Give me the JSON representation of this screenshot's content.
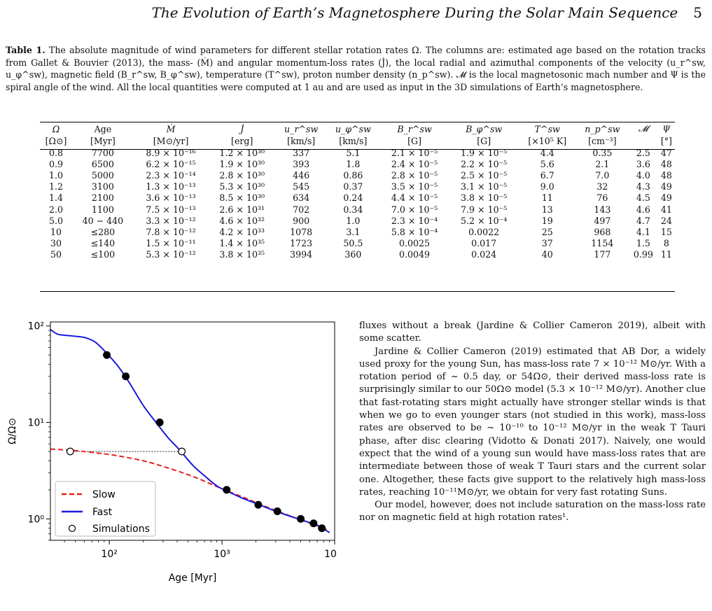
{
  "header": {
    "running_title": "The Evolution of Earth’s Magnetosphere During the Solar Main Sequence",
    "page_number": "5"
  },
  "caption": {
    "label": "Table 1.",
    "text": "The absolute magnitude of wind parameters for different stellar rotation rates Ω. The columns are: estimated age based on the rotation tracks from Gallet & Bouvier (2013), the mass- (Ṁ) and angular momentum-loss rates (J̇), the local radial and azimuthal components of the velocity (u_r^sw, u_φ^sw), magnetic field (B_r^sw, B_φ^sw), temperature (T^sw), proton number density (n_p^sw). 𝓜 is the local magnetosonic mach number and Ψ is the spiral angle of the wind. All the local quantities were computed at 1 au and are used as input in the 3D simulations of Earth’s magnetosphere."
  },
  "table": {
    "headers": [
      "Ω",
      "Age",
      "Ṁ",
      "J̇",
      "u_r^sw",
      "u_φ^sw",
      "B_r^sw",
      "B_φ^sw",
      "T^sw",
      "n_p^sw",
      "𝓜",
      "Ψ"
    ],
    "units": [
      "[Ω⊙]",
      "[Myr]",
      "[M⊙/yr]",
      "[erg]",
      "[km/s]",
      "[km/s]",
      "[G]",
      "[G]",
      "[×10⁵ K]",
      "[cm⁻³]",
      "",
      "[°]"
    ],
    "rows": [
      [
        "0.8",
        "7700",
        "8.9 × 10⁻¹⁶",
        "1.2 × 10³⁰",
        "337",
        "5.1",
        "2.1 × 10⁻⁵",
        "1.9 × 10⁻⁵",
        "4.4",
        "0.35",
        "2.5",
        "47"
      ],
      [
        "0.9",
        "6500",
        "6.2 × 10⁻¹⁵",
        "1.9 × 10³⁰",
        "393",
        "1.8",
        "2.4 × 10⁻⁵",
        "2.2 × 10⁻⁵",
        "5.6",
        "2.1",
        "3.6",
        "48"
      ],
      [
        "1.0",
        "5000",
        "2.3 × 10⁻¹⁴",
        "2.8 × 10³⁰",
        "446",
        "0.86",
        "2.8 × 10⁻⁵",
        "2.5 × 10⁻⁵",
        "6.7",
        "7.0",
        "4.0",
        "48"
      ],
      [
        "1.2",
        "3100",
        "1.3 × 10⁻¹³",
        "5.3 × 10³⁰",
        "545",
        "0.37",
        "3.5 × 10⁻⁵",
        "3.1 × 10⁻⁵",
        "9.0",
        "32",
        "4.3",
        "49"
      ],
      [
        "1.4",
        "2100",
        "3.6 × 10⁻¹³",
        "8.5 × 10³⁰",
        "634",
        "0.24",
        "4.4 × 10⁻⁵",
        "3.8 × 10⁻⁵",
        "11",
        "76",
        "4.5",
        "49"
      ],
      [
        "2.0",
        "1100",
        "7.5 × 10⁻¹³",
        "2.6 × 10³¹",
        "702",
        "0.34",
        "7.0 × 10⁻⁵",
        "7.9 × 10⁻⁵",
        "13",
        "143",
        "4.6",
        "41"
      ],
      [
        "5.0",
        "40 − 440",
        "3.3 × 10⁻¹²",
        "4.6 × 10³²",
        "900",
        "1.0",
        "2.3 × 10⁻⁴",
        "5.2 × 10⁻⁴",
        "19",
        "497",
        "4.7",
        "24"
      ],
      [
        "10",
        "≤280",
        "7.8 × 10⁻¹²",
        "4.2 × 10³³",
        "1078",
        "3.1",
        "5.8 × 10⁻⁴",
        "0.0022",
        "25",
        "968",
        "4.1",
        "15"
      ],
      [
        "30",
        "≤140",
        "1.5 × 10⁻¹¹",
        "1.4 × 10³⁵",
        "1723",
        "50.5",
        "0.0025",
        "0.017",
        "37",
        "1154",
        "1.5",
        "8"
      ],
      [
        "50",
        "≤100",
        "5.3 × 10⁻¹²",
        "3.8 × 10³⁵",
        "3994",
        "360",
        "0.0049",
        "0.024",
        "40",
        "177",
        "0.99",
        "11"
      ]
    ]
  },
  "chart_data": {
    "type": "line",
    "xlabel": "Age [Myr]",
    "ylabel": "Ω/Ω⊙",
    "xscale": "log",
    "yscale": "log",
    "xlim": [
      30,
      10000
    ],
    "ylim": [
      0.6,
      110
    ],
    "xticks": [
      "10²",
      "10³",
      "10"
    ],
    "yticks": [
      "10⁰",
      "10¹",
      "10²"
    ],
    "legend": {
      "placement": "lower-left",
      "entries": [
        "Slow",
        "Fast",
        "Simulations"
      ]
    },
    "series": [
      {
        "name": "Slow",
        "style": "dashed",
        "color": "#e8201e",
        "x": [
          30,
          50,
          80,
          120,
          200,
          300,
          450,
          600,
          800,
          1000,
          1500,
          2000,
          3000,
          5000,
          7000,
          9000
        ],
        "y": [
          5.3,
          5.1,
          4.8,
          4.5,
          4.0,
          3.5,
          3.0,
          2.65,
          2.3,
          2.05,
          1.7,
          1.48,
          1.22,
          0.98,
          0.85,
          0.75
        ]
      },
      {
        "name": "Fast",
        "style": "solid",
        "color": "#1b1bdc",
        "x": [
          30,
          35,
          45,
          60,
          75,
          95,
          120,
          150,
          200,
          260,
          330,
          420,
          550,
          700,
          900,
          1100,
          1500,
          2000,
          3000,
          5000,
          7000,
          9000
        ],
        "y": [
          92,
          82,
          79,
          76,
          68,
          52,
          38,
          26,
          15,
          10,
          7,
          5.2,
          3.6,
          2.8,
          2.2,
          1.95,
          1.65,
          1.45,
          1.2,
          0.98,
          0.86,
          0.72
        ]
      },
      {
        "name": "Simulations",
        "style": "markers",
        "filled": [
          [
            95,
            50
          ],
          [
            140,
            30
          ],
          [
            280,
            10
          ],
          [
            1100,
            2.0
          ],
          [
            2100,
            1.4
          ],
          [
            3100,
            1.2
          ],
          [
            5000,
            1.0
          ],
          [
            6500,
            0.9
          ],
          [
            7700,
            0.8
          ]
        ],
        "open": [
          [
            45,
            5.0
          ],
          [
            440,
            5.0
          ]
        ]
      }
    ],
    "annotation": {
      "type": "dotted-line",
      "from": [
        45,
        5.0
      ],
      "to": [
        440,
        5.0
      ]
    }
  },
  "body": {
    "paragraphs": [
      "fluxes without a break (Jardine & Collier Cameron 2019), albeit with some scatter.",
      "Jardine & Collier Cameron (2019) estimated that AB Dor, a widely used proxy for the young Sun, has mass-loss rate 7 × 10⁻¹² M⊙/yr. With a rotation period of ~ 0.5 day, or 54Ω⊙, their derived mass-loss rate is surprisingly similar to our 50Ω⊙ model (5.3 × 10⁻¹² M⊙/yr). Another clue that fast-rotating stars might actually have stronger stellar winds is that when we go to even younger stars (not studied in this work), mass-loss rates are observed to be ~ 10⁻¹⁰ to 10⁻¹² M⊙/yr in the weak T Tauri phase, after disc clearing (Vidotto & Donati 2017). Naively, one would expect that the wind of a young sun would have mass-loss rates that are intermediate between those of weak T Tauri stars and the current solar one. Altogether, these facts give support to the relatively high mass-loss rates, reaching 10⁻¹¹M⊙/yr, we obtain for very fast rotating Suns.",
      "Our model, however, does not include saturation on the mass-loss rate nor on magnetic field at high rotation rates¹."
    ]
  }
}
